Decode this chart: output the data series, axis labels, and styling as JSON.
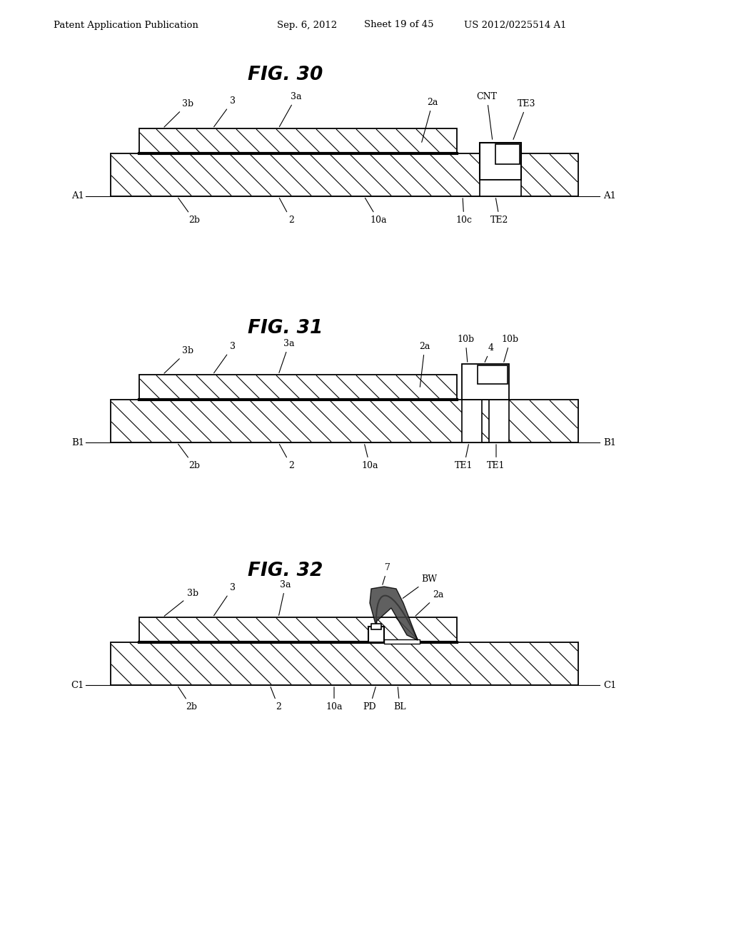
{
  "bg_color": "#ffffff",
  "header_left": "Patent Application Publication",
  "header_mid": "Sep. 6, 2012   Sheet 19 of 45",
  "header_right": "US 2012/0225514 A1",
  "fig30_title": "FIG. 30",
  "fig31_title": "FIG. 31",
  "fig32_title": "FIG. 32"
}
